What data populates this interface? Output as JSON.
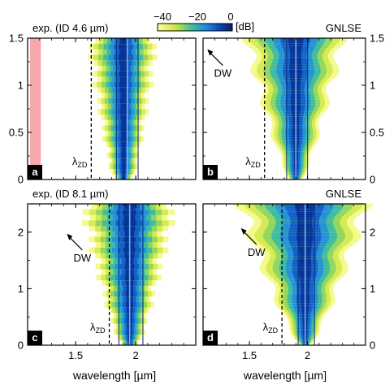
{
  "colorbar": {
    "ticks": [
      "−40",
      "−20",
      "0"
    ],
    "unit": "[dB]",
    "range": [
      -50,
      0
    ],
    "stops": [
      "#ffffa0",
      "#c8e43c",
      "#41c29a",
      "#1e88e5",
      "#0a3fb0",
      "#071e66"
    ]
  },
  "xlabel": "wavelength [µm]",
  "chart_data": [
    {
      "type": "heatmap",
      "panel_letter": "a",
      "title": "exp. (ID 4.6 µm)",
      "xlim": [
        1.1,
        2.5
      ],
      "ylim": [
        0,
        1.5
      ],
      "yticks": [
        0,
        0.5,
        1,
        1.5
      ],
      "ytick_labels": [
        "0",
        "0.5",
        "1",
        "1.5"
      ],
      "xticks": [
        1.5,
        2
      ],
      "xtick_labels": [
        "",
        ""
      ],
      "zd_wavelength": 1.63,
      "zd_label": "λZD",
      "shaded_x": [
        1.12,
        1.21
      ],
      "spectrum": {
        "center": 1.9,
        "min_halfwidth": 0.08,
        "max_halfwidth": 0.28,
        "growth": "stepped",
        "fibers": [
          1.84,
          1.93,
          2.02
        ]
      }
    },
    {
      "type": "heatmap",
      "panel_letter": "b",
      "title": "GNLSE",
      "xlim": [
        1.1,
        2.5
      ],
      "ylim": [
        0,
        1.5
      ],
      "yticks": [
        0,
        0.5,
        1,
        1.5
      ],
      "ytick_labels": [
        "0",
        "0.5",
        "1",
        "1.5"
      ],
      "xticks": [
        1.5,
        2
      ],
      "xtick_labels": [
        "",
        ""
      ],
      "zd_wavelength": 1.63,
      "zd_label": "λZD",
      "dw_label": "DW",
      "dw_wavelength": 1.13,
      "dw_height": 1.4,
      "spectrum": {
        "center": 1.9,
        "min_halfwidth": 0.05,
        "max_halfwidth": 0.42,
        "growth": "smooth",
        "fibers": [
          1.82,
          1.9,
          2.0
        ]
      }
    },
    {
      "type": "heatmap",
      "panel_letter": "c",
      "title": "exp. (ID 8.1 µm)",
      "xlim": [
        1.1,
        2.5
      ],
      "ylim": [
        0,
        2.5
      ],
      "yticks": [
        0,
        1,
        2
      ],
      "ytick_labels": [
        "0",
        "1",
        "2"
      ],
      "xticks": [
        1.5,
        2
      ],
      "xtick_labels": [
        "1.5",
        "2"
      ],
      "zd_wavelength": 1.78,
      "zd_label": "λZD",
      "dw_label": "DW",
      "dw_wavelength": 1.42,
      "dw_height": 2.0,
      "spectrum": {
        "center": 1.95,
        "min_halfwidth": 0.07,
        "max_halfwidth": 0.38,
        "growth": "stepped",
        "fibers": [
          1.86,
          1.95,
          2.06
        ]
      }
    },
    {
      "type": "heatmap",
      "panel_letter": "d",
      "title": "GNLSE",
      "xlim": [
        1.1,
        2.5
      ],
      "ylim": [
        0,
        2.5
      ],
      "yticks": [
        0,
        1,
        2
      ],
      "ytick_labels": [
        "0",
        "1",
        "2"
      ],
      "xticks": [
        1.5,
        2
      ],
      "xtick_labels": [
        "1.5",
        "2"
      ],
      "zd_wavelength": 1.78,
      "zd_label": "λZD",
      "dw_label": "DW",
      "dw_wavelength": 1.42,
      "dw_height": 2.1,
      "spectrum": {
        "center": 1.98,
        "min_halfwidth": 0.04,
        "max_halfwidth": 0.55,
        "growth": "smooth",
        "fibers": [
          1.92,
          1.98,
          2.06
        ]
      }
    }
  ]
}
